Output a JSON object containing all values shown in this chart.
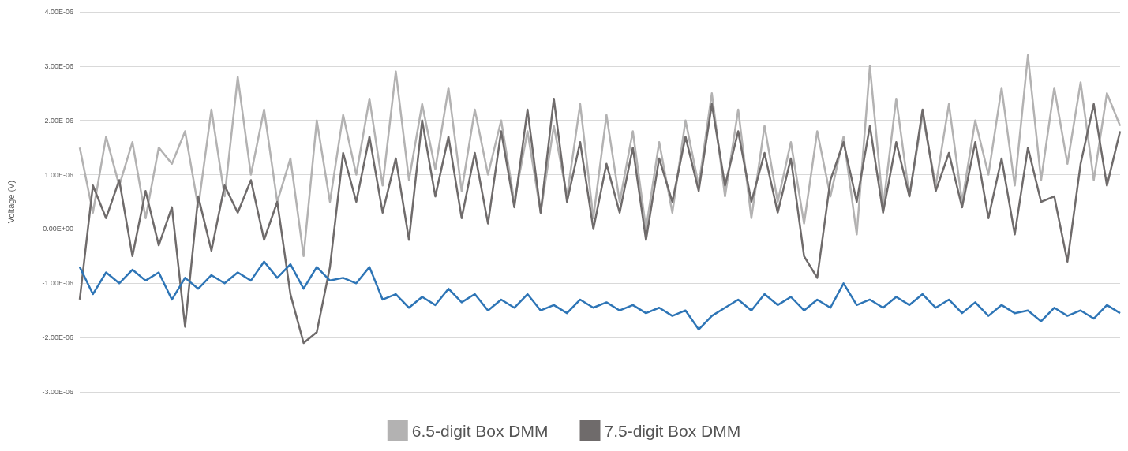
{
  "chart_data": {
    "type": "line",
    "ylabel": "Voltage (V)",
    "marker": "none",
    "grid": "y",
    "legend": "bottom",
    "ylim": [
      -3e-06,
      4e-06
    ],
    "yticks": [
      {
        "value": -3e-06,
        "label": "-3.00E-06"
      },
      {
        "value": -2e-06,
        "label": "-2.00E-06"
      },
      {
        "value": -1e-06,
        "label": "-1.00E-06"
      },
      {
        "value": 0,
        "label": "0.00E+00"
      },
      {
        "value": 1e-06,
        "label": "1.00E-06"
      },
      {
        "value": 2e-06,
        "label": "2.00E-06"
      },
      {
        "value": 3e-06,
        "label": "3.00E-06"
      },
      {
        "value": 4e-06,
        "label": "4.00E-06"
      }
    ],
    "categories": [
      null,
      null,
      null,
      null,
      null,
      null,
      null,
      null,
      null,
      null,
      null,
      null,
      null,
      null,
      null,
      null,
      null,
      null,
      null,
      null,
      null,
      null,
      null,
      null,
      null,
      null,
      null,
      null,
      null,
      null,
      null,
      null,
      null,
      null,
      null,
      null,
      null,
      null,
      null,
      null,
      null,
      null,
      null,
      null,
      null,
      null,
      null,
      null,
      null,
      null,
      null,
      null,
      null,
      null,
      null,
      null,
      null,
      null,
      null,
      null,
      null,
      null,
      null,
      null,
      null,
      null,
      null,
      null,
      null,
      null,
      null,
      null,
      null,
      null,
      null,
      null,
      null,
      null,
      null,
      null
    ],
    "series": [
      {
        "name": "6.5-digit Box DMM",
        "color": "#b3b2b2",
        "values": [
          1.5e-06,
          3e-07,
          1.7e-06,
          8e-07,
          1.6e-06,
          2e-07,
          1.5e-06,
          1.2e-06,
          1.8e-06,
          4e-07,
          2.2e-06,
          6e-07,
          2.8e-06,
          1e-06,
          2.2e-06,
          5e-07,
          1.3e-06,
          -5e-07,
          2e-06,
          5e-07,
          2.1e-06,
          1e-06,
          2.4e-06,
          8e-07,
          2.9e-06,
          9e-07,
          2.3e-06,
          1.1e-06,
          2.6e-06,
          7e-07,
          2.2e-06,
          1e-06,
          2e-06,
          5e-07,
          1.8e-06,
          3e-07,
          1.9e-06,
          6e-07,
          2.3e-06,
          2e-07,
          2.1e-06,
          5e-07,
          1.8e-06,
          0.0,
          1.6e-06,
          3e-07,
          2e-06,
          8e-07,
          2.5e-06,
          6e-07,
          2.2e-06,
          2e-07,
          1.9e-06,
          5e-07,
          1.6e-06,
          1e-07,
          1.8e-06,
          6e-07,
          1.7e-06,
          -1e-07,
          3e-06,
          4e-07,
          2.4e-06,
          6e-07,
          2.1e-06,
          8e-07,
          2.3e-06,
          5e-07,
          2e-06,
          1e-06,
          2.6e-06,
          8e-07,
          3.2e-06,
          9e-07,
          2.6e-06,
          1.2e-06,
          2.7e-06,
          9e-07,
          2.5e-06,
          1.9e-06
        ]
      },
      {
        "name": "7.5-digit Box DMM",
        "color": "#6f6b6b",
        "values": [
          -1.3e-06,
          8e-07,
          2e-07,
          9e-07,
          -5e-07,
          7e-07,
          -3e-07,
          4e-07,
          -1.8e-06,
          6e-07,
          -4e-07,
          8e-07,
          3e-07,
          9e-07,
          -2e-07,
          5e-07,
          -1.2e-06,
          -2.1e-06,
          -1.9e-06,
          -7e-07,
          1.4e-06,
          5e-07,
          1.7e-06,
          3e-07,
          1.3e-06,
          -2e-07,
          2e-06,
          6e-07,
          1.7e-06,
          2e-07,
          1.4e-06,
          1e-07,
          1.8e-06,
          4e-07,
          2.2e-06,
          3e-07,
          2.4e-06,
          5e-07,
          1.6e-06,
          0.0,
          1.2e-06,
          3e-07,
          1.5e-06,
          -2e-07,
          1.3e-06,
          5e-07,
          1.7e-06,
          7e-07,
          2.3e-06,
          8e-07,
          1.8e-06,
          5e-07,
          1.4e-06,
          3e-07,
          1.3e-06,
          -5e-07,
          -9e-07,
          9e-07,
          1.6e-06,
          5e-07,
          1.9e-06,
          3e-07,
          1.6e-06,
          6e-07,
          2.2e-06,
          7e-07,
          1.4e-06,
          4e-07,
          1.6e-06,
          2e-07,
          1.3e-06,
          -1e-07,
          1.5e-06,
          5e-07,
          6e-07,
          -6e-07,
          1.2e-06,
          2.3e-06,
          8e-07,
          1.8e-06
        ]
      },
      {
        "color": "#2e75b6",
        "values": [
          -7e-07,
          -1.2e-06,
          -8e-07,
          -1e-06,
          -7.5e-07,
          -9.5e-07,
          -8e-07,
          -1.3e-06,
          -9e-07,
          -1.1e-06,
          -8.5e-07,
          -1e-06,
          -8e-07,
          -9.5e-07,
          -6e-07,
          -9e-07,
          -6.5e-07,
          -1.1e-06,
          -7e-07,
          -9.5e-07,
          -9e-07,
          -1e-06,
          -7e-07,
          -1.3e-06,
          -1.2e-06,
          -1.45e-06,
          -1.25e-06,
          -1.4e-06,
          -1.1e-06,
          -1.35e-06,
          -1.2e-06,
          -1.5e-06,
          -1.3e-06,
          -1.45e-06,
          -1.2e-06,
          -1.5e-06,
          -1.4e-06,
          -1.55e-06,
          -1.3e-06,
          -1.45e-06,
          -1.35e-06,
          -1.5e-06,
          -1.4e-06,
          -1.55e-06,
          -1.45e-06,
          -1.6e-06,
          -1.5e-06,
          -1.85e-06,
          -1.6e-06,
          -1.45e-06,
          -1.3e-06,
          -1.5e-06,
          -1.2e-06,
          -1.4e-06,
          -1.25e-06,
          -1.5e-06,
          -1.3e-06,
          -1.45e-06,
          -1e-06,
          -1.4e-06,
          -1.3e-06,
          -1.45e-06,
          -1.25e-06,
          -1.4e-06,
          -1.2e-06,
          -1.45e-06,
          -1.3e-06,
          -1.55e-06,
          -1.35e-06,
          -1.6e-06,
          -1.4e-06,
          -1.55e-06,
          -1.5e-06,
          -1.7e-06,
          -1.45e-06,
          -1.6e-06,
          -1.5e-06,
          -1.65e-06,
          -1.4e-06,
          -1.55e-06
        ]
      }
    ]
  }
}
